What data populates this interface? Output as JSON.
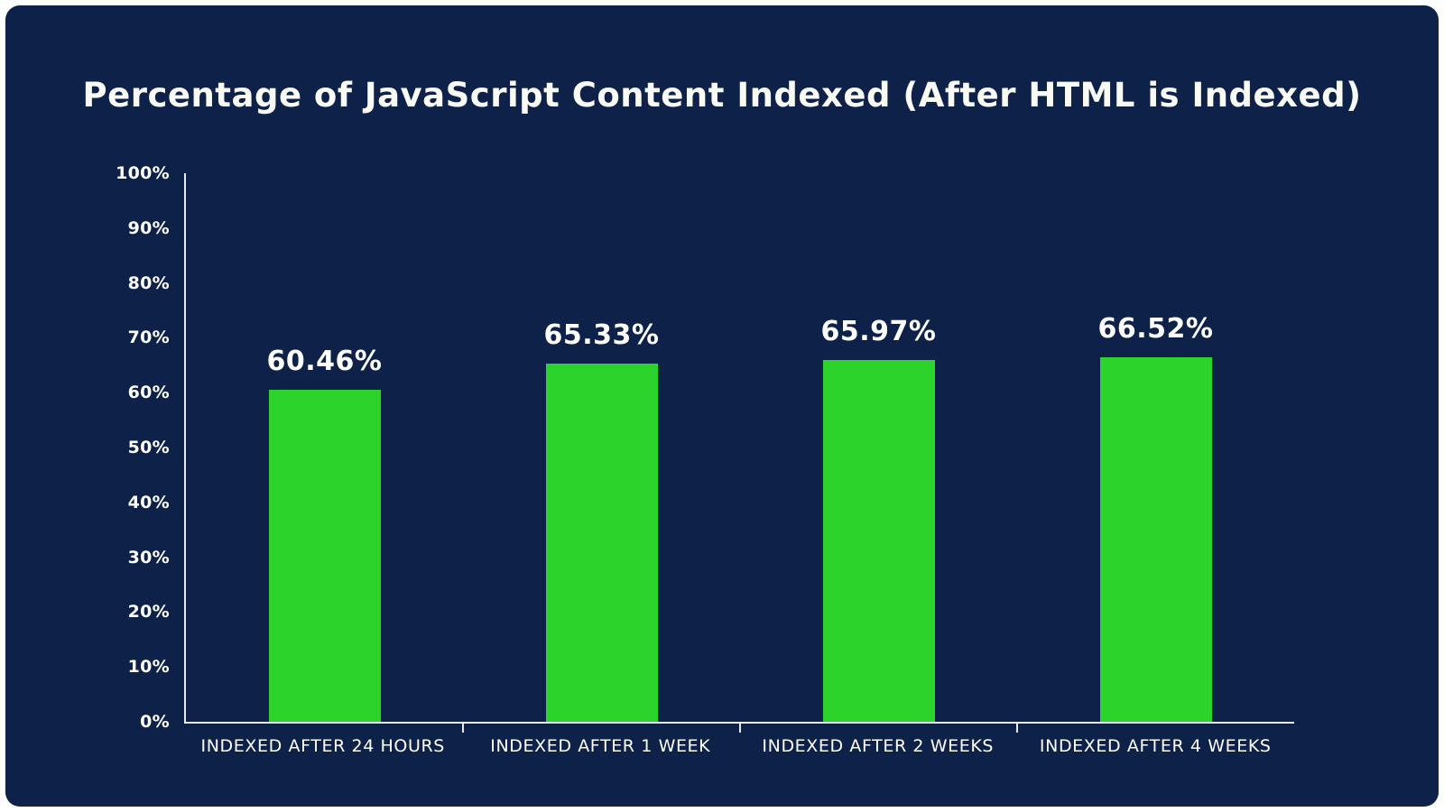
{
  "chart_data": {
    "type": "bar",
    "title": "Percentage of JavaScript Content Indexed (After HTML is Indexed)",
    "categories": [
      "INDEXED AFTER 24 HOURS",
      "INDEXED AFTER 1 WEEK",
      "INDEXED AFTER 2 WEEKS",
      "INDEXED AFTER 4 WEEKS"
    ],
    "values": [
      60.46,
      65.33,
      65.97,
      66.52
    ],
    "value_labels": [
      "60.46%",
      "65.33%",
      "65.97%",
      "66.52%"
    ],
    "xlabel": "",
    "ylabel": "",
    "ylim": [
      0,
      100
    ],
    "ytick_step": 10,
    "ytick_suffix": "%",
    "grid": false,
    "legend": "none",
    "colors": {
      "background": "#0d2149",
      "bar": "#2bd32b",
      "axis": "#e8eaee",
      "text": "#ffffff"
    }
  }
}
